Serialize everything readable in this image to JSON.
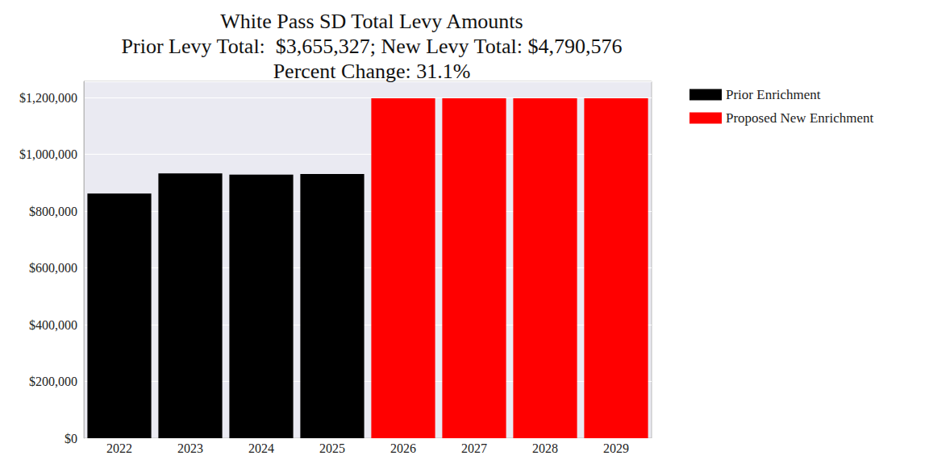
{
  "chart_data": {
    "type": "bar",
    "title": "White Pass SD Total Levy Amounts\nPrior Levy Total:  $3,655,327; New Levy Total: $4,790,576\nPercent Change: 31.1%",
    "categories": [
      "2022",
      "2023",
      "2024",
      "2025",
      "2026",
      "2027",
      "2028",
      "2029"
    ],
    "series": [
      {
        "name": "Prior Enrichment",
        "color": "#000000",
        "values": [
          862000,
          933500,
          929000,
          930827,
          null,
          null,
          null,
          null
        ]
      },
      {
        "name": "Proposed New Enrichment",
        "color": "#ff0000",
        "values": [
          null,
          null,
          null,
          null,
          1197644,
          1197644,
          1197644,
          1197644
        ]
      }
    ],
    "ylim": [
      0,
      1257526
    ],
    "yticks": [
      {
        "value": 0,
        "label": "$0"
      },
      {
        "value": 200000,
        "label": "$200,000"
      },
      {
        "value": 400000,
        "label": "$400,000"
      },
      {
        "value": 600000,
        "label": "$600,000"
      },
      {
        "value": 800000,
        "label": "$800,000"
      },
      {
        "value": 1000000,
        "label": "$1,000,000"
      },
      {
        "value": 1200000,
        "label": "$1,200,000"
      }
    ],
    "grid": true,
    "legend": "right"
  }
}
